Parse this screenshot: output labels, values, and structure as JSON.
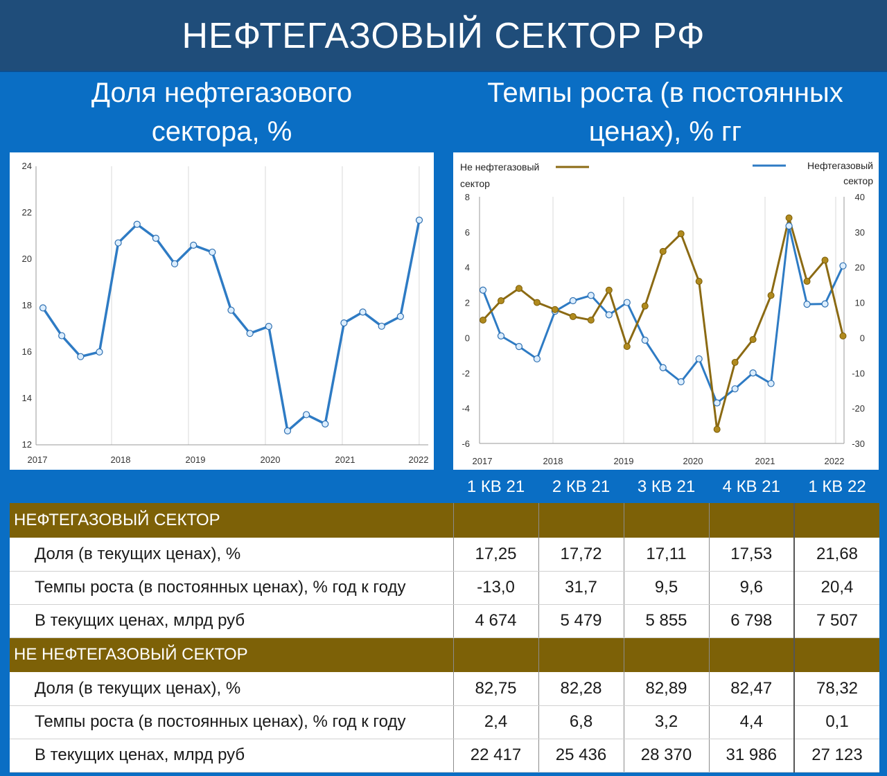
{
  "title": "НЕФТЕГАЗОВЫЙ СЕКТОР РФ",
  "subtitles": {
    "left": [
      "Доля нефтегазового",
      "сектора, %"
    ],
    "right": [
      "Темпы роста (в постоянных",
      "ценах), % гг"
    ]
  },
  "colors": {
    "header_bg": "#1f4d7a",
    "page_bg": "#0a6ec4",
    "oil_gas_line": "#2e7bc4",
    "non_oil_gas_line": "#8b6a13",
    "section_bg": "#7d6107",
    "negative": "#c00000"
  },
  "chart_data": [
    {
      "type": "line",
      "x_tick_labels": [
        "2017",
        "2018",
        "2019",
        "2020",
        "2021",
        "2022"
      ],
      "y_ticks": [
        12,
        14,
        16,
        18,
        20,
        22,
        24
      ],
      "ylim": [
        12,
        24
      ],
      "x": [
        2017.0,
        2017.25,
        2017.5,
        2017.75,
        2018.0,
        2018.25,
        2018.5,
        2018.75,
        2019.0,
        2019.25,
        2019.5,
        2019.75,
        2020.0,
        2020.25,
        2020.5,
        2020.75,
        2021.0,
        2021.25,
        2021.5,
        2021.75,
        2022.0
      ],
      "series": [
        {
          "values": [
            17.9,
            16.7,
            15.8,
            16.0,
            20.7,
            21.5,
            20.9,
            19.8,
            20.6,
            20.3,
            17.8,
            16.8,
            17.1,
            12.6,
            13.3,
            12.9,
            17.25,
            17.72,
            17.11,
            17.53,
            21.68
          ]
        }
      ],
      "grid": "vertical"
    },
    {
      "type": "line",
      "x_tick_labels": [
        "2017",
        "2018",
        "2019",
        "2020",
        "2021",
        "2022"
      ],
      "left_y_ticks": [
        -6,
        -4,
        -2,
        0,
        2,
        4,
        6,
        8
      ],
      "right_y_ticks": [
        -30,
        -20,
        -10,
        0,
        10,
        20,
        30,
        40
      ],
      "ylim_left": [
        -6,
        8
      ],
      "ylim_right": [
        -30,
        40
      ],
      "x": [
        2017.0,
        2017.25,
        2017.5,
        2017.75,
        2018.0,
        2018.25,
        2018.5,
        2018.75,
        2019.0,
        2019.25,
        2019.5,
        2019.75,
        2020.0,
        2020.25,
        2020.5,
        2020.75,
        2021.0,
        2021.25,
        2021.5,
        2021.75,
        2022.0
      ],
      "legend": {
        "left_label": [
          "Не нефтегазовый",
          "сектор"
        ],
        "right_label": [
          "Нефтегазовый",
          "сектор"
        ]
      },
      "series": [
        {
          "name": "Не нефтегазовый сектор",
          "axis": "left",
          "values": [
            1.0,
            2.1,
            2.8,
            2.0,
            1.6,
            1.2,
            1.0,
            2.7,
            -0.5,
            1.8,
            4.9,
            5.9,
            3.2,
            -5.2,
            -1.4,
            -0.1,
            2.4,
            6.8,
            3.2,
            4.4,
            0.1
          ]
        },
        {
          "name": "Нефтегазовый сектор",
          "axis": "right",
          "values": [
            13.5,
            0.5,
            -2.5,
            -6.0,
            7.5,
            10.5,
            12.0,
            6.5,
            10.0,
            -0.7,
            -8.5,
            -12.5,
            -6.0,
            -18.5,
            -14.5,
            -10.0,
            -13.0,
            31.7,
            9.5,
            9.6,
            20.4
          ]
        }
      ],
      "grid": "vertical"
    }
  ],
  "table": {
    "columns": [
      "1 КВ 21",
      "2 КВ 21",
      "3 КВ 21",
      "4 КВ 21",
      "1 КВ 22"
    ],
    "sections": [
      {
        "title": "НЕФТЕГАЗОВЫЙ СЕКТОР",
        "rows": [
          {
            "label": "Доля (в текущих ценах), %",
            "values": [
              "17,25",
              "17,72",
              "17,11",
              "17,53",
              "21,68"
            ]
          },
          {
            "label": "Темпы роста (в постоянных ценах), % год к году",
            "values": [
              "-13,0",
              "31,7",
              "9,5",
              "9,6",
              "20,4"
            ]
          },
          {
            "label": "В текущих ценах, млрд руб",
            "values": [
              "4 674",
              "5 479",
              "5 855",
              "6 798",
              "7 507"
            ]
          }
        ]
      },
      {
        "title": "НЕ НЕФТЕГАЗОВЫЙ СЕКТОР",
        "rows": [
          {
            "label": "Доля (в текущих ценах), %",
            "values": [
              "82,75",
              "82,28",
              "82,89",
              "82,47",
              "78,32"
            ]
          },
          {
            "label": "Темпы роста (в постоянных ценах), % год к году",
            "values": [
              "2,4",
              "6,8",
              "3,2",
              "4,4",
              "0,1"
            ]
          },
          {
            "label": "В текущих ценах, млрд руб",
            "values": [
              "22 417",
              "25 436",
              "28 370",
              "31 986",
              "27 123"
            ]
          }
        ]
      }
    ]
  }
}
